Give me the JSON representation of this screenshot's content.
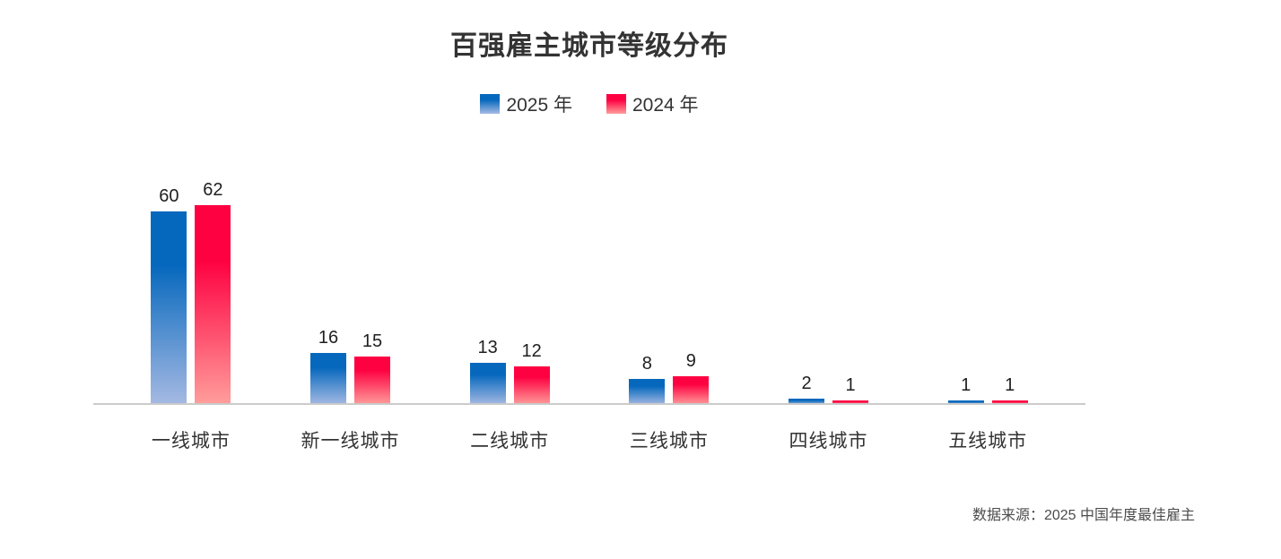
{
  "title": "百强雇主城市等级分布",
  "source_note": "数据来源：2025 中国年度最佳雇主",
  "colors": {
    "blue_top": "#0668bd",
    "blue_bottom": "#a6bae3",
    "red_top": "#fe0141",
    "red_bottom": "#ff9e9b",
    "axis": "#cbcbcb",
    "title_text": "#333333",
    "value_text": "#1f1f1f",
    "category_text": "#333333",
    "source_text": "#4c4c4c"
  },
  "chart_data": {
    "type": "bar",
    "title": "百强雇主城市等级分布",
    "categories": [
      "一线城市",
      "新一线城市",
      "二线城市",
      "三线城市",
      "四线城市",
      "五线城市"
    ],
    "series": [
      {
        "name": "2025 年",
        "values": [
          60,
          16,
          13,
          8,
          2,
          1
        ]
      },
      {
        "name": "2024 年",
        "values": [
          62,
          15,
          12,
          9,
          1,
          1
        ]
      }
    ],
    "xlabel": "",
    "ylabel": "",
    "ylim": [
      0,
      65
    ],
    "grid": false,
    "value_labels": true,
    "legend_position": "top-center"
  }
}
